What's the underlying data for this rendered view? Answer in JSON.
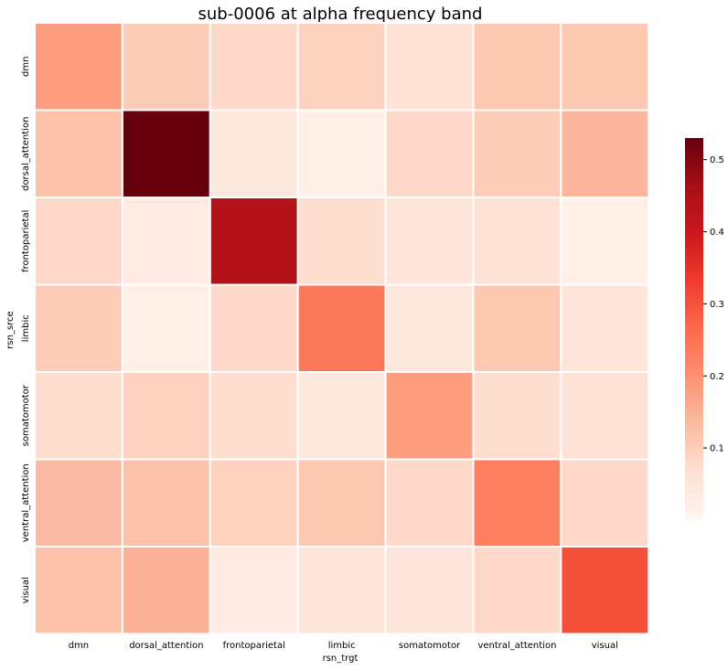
{
  "chart_data": {
    "type": "heatmap",
    "title": "sub-0006 at alpha frequency band",
    "xlabel": "rsn_trgt",
    "ylabel": "rsn_srce",
    "x_categories": [
      "dmn",
      "dorsal_attention",
      "frontoparietal",
      "limbic",
      "somatomotor",
      "ventral_attention",
      "visual"
    ],
    "y_categories": [
      "dmn",
      "dorsal_attention",
      "frontoparietal",
      "limbic",
      "somatomotor",
      "ventral_attention",
      "visual"
    ],
    "values": [
      [
        0.18,
        0.1,
        0.08,
        0.09,
        0.06,
        0.11,
        0.11
      ],
      [
        0.12,
        0.53,
        0.04,
        0.02,
        0.08,
        0.1,
        0.14
      ],
      [
        0.08,
        0.03,
        0.44,
        0.07,
        0.05,
        0.06,
        0.02
      ],
      [
        0.1,
        0.02,
        0.08,
        0.24,
        0.04,
        0.11,
        0.05
      ],
      [
        0.07,
        0.09,
        0.07,
        0.04,
        0.18,
        0.07,
        0.06
      ],
      [
        0.13,
        0.12,
        0.09,
        0.11,
        0.08,
        0.23,
        0.08
      ],
      [
        0.12,
        0.15,
        0.03,
        0.05,
        0.05,
        0.08,
        0.3
      ]
    ],
    "colormap": "Reds",
    "vmin": 0.0,
    "vmax": 0.53,
    "colorbar_ticks": [
      0.1,
      0.2,
      0.3,
      0.4,
      0.5
    ],
    "grid_color": "#ffffff"
  }
}
